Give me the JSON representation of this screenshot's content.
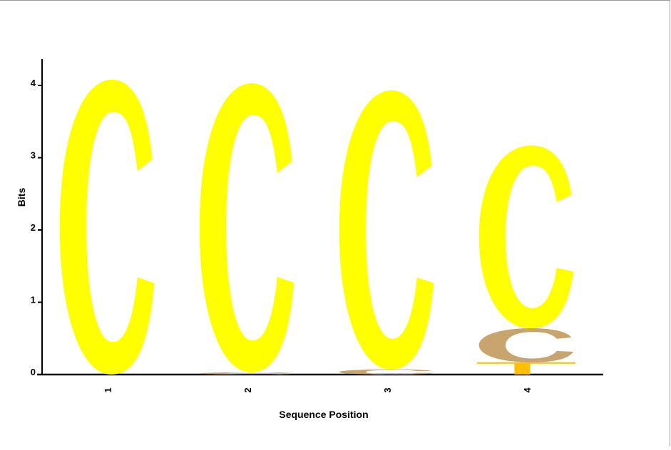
{
  "chart_data": {
    "type": "sequence-logo",
    "title": "",
    "xlabel": "Sequence Position",
    "ylabel": "Bits",
    "ylim": [
      0,
      4.3
    ],
    "y_ticks": [
      "0",
      "1",
      "2",
      "3",
      "4"
    ],
    "categories": [
      "1",
      "2",
      "3",
      "4"
    ],
    "positions": [
      {
        "label": "1",
        "letters": [
          {
            "char": "C",
            "height": 4.08,
            "color": "#ffff00"
          }
        ]
      },
      {
        "label": "2",
        "letters": [
          {
            "char": "C",
            "height": 0.03,
            "color": "#c8a46e"
          },
          {
            "char": "C",
            "height": 4.0,
            "color": "#ffff00"
          }
        ]
      },
      {
        "label": "3",
        "letters": [
          {
            "char": "C",
            "height": 0.07,
            "color": "#c8a46e"
          },
          {
            "char": "C",
            "height": 3.86,
            "color": "#ffff00"
          }
        ]
      },
      {
        "label": "4",
        "letters": [
          {
            "char": "T",
            "height": 0.17,
            "color": "#ffc000"
          },
          {
            "char": "C",
            "height": 0.47,
            "color": "#c8a46e"
          },
          {
            "char": "C",
            "height": 2.53,
            "color": "#ffff00"
          }
        ]
      }
    ],
    "grid": false,
    "legend": "none"
  }
}
